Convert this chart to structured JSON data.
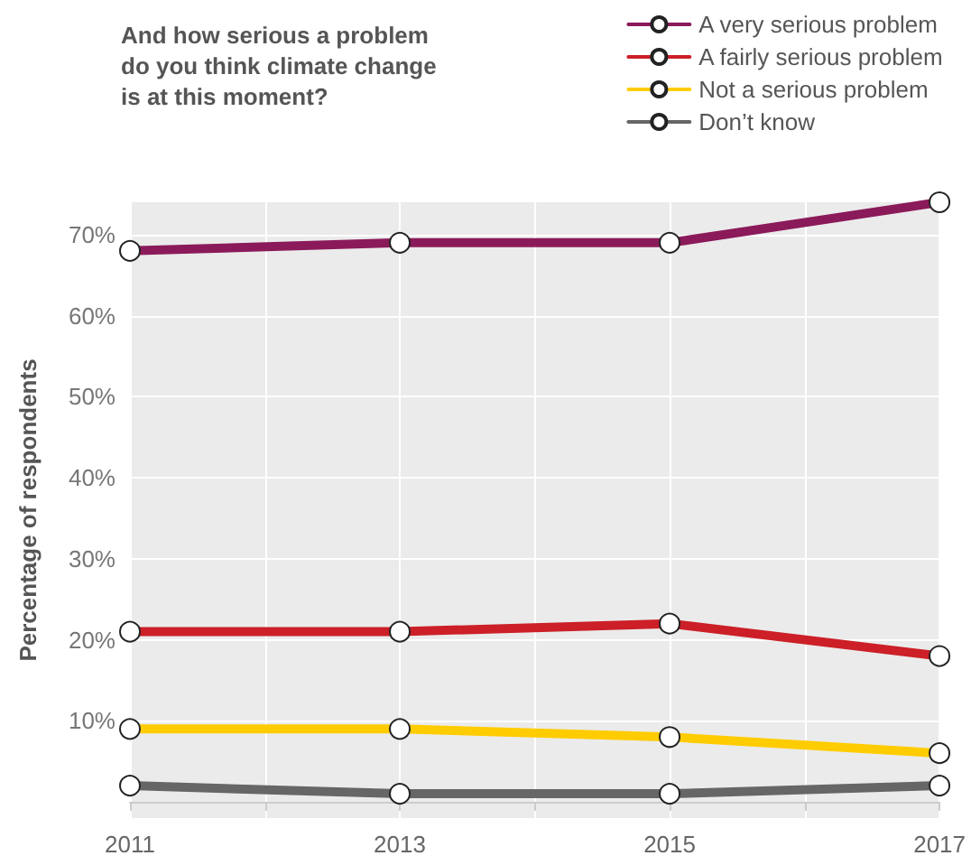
{
  "chart_data": {
    "type": "line",
    "title": "And how serious a problem\ndo you think climate change\nis at this moment?",
    "ylabel": "Percentage of respondents",
    "x": [
      2011,
      2013,
      2015,
      2017
    ],
    "series": [
      {
        "name": "A very serious problem",
        "color": "#8b1a5a",
        "values": [
          68,
          69,
          69,
          74
        ]
      },
      {
        "name": "A fairly serious problem",
        "color": "#cc1f27",
        "values": [
          21,
          21,
          22,
          18
        ]
      },
      {
        "name": "Not a serious problem",
        "color": "#ffcc00",
        "values": [
          9,
          9,
          8,
          6
        ]
      },
      {
        "name": "Don’t know",
        "color": "#666666",
        "values": [
          2,
          1,
          1,
          2
        ]
      }
    ],
    "xlim": [
      2011,
      2017
    ],
    "xticks": [
      2011,
      {
        "value": 2012,
        "label": null
      },
      2013,
      {
        "value": 2014,
        "label": null
      },
      2015,
      {
        "value": 2016,
        "label": null
      },
      2017
    ],
    "ylim": [
      -2,
      74
    ],
    "yticks": [
      {
        "value": 10,
        "label": "10%"
      },
      {
        "value": 20,
        "label": "20%"
      },
      {
        "value": 30,
        "label": "30%"
      },
      {
        "value": 40,
        "label": "40%"
      },
      {
        "value": 50,
        "label": "50%"
      },
      {
        "value": 60,
        "label": "60%"
      },
      {
        "value": 70,
        "label": "70%"
      }
    ],
    "grid": true,
    "legend": "top right",
    "marker": "circle",
    "line_style": "solid"
  }
}
